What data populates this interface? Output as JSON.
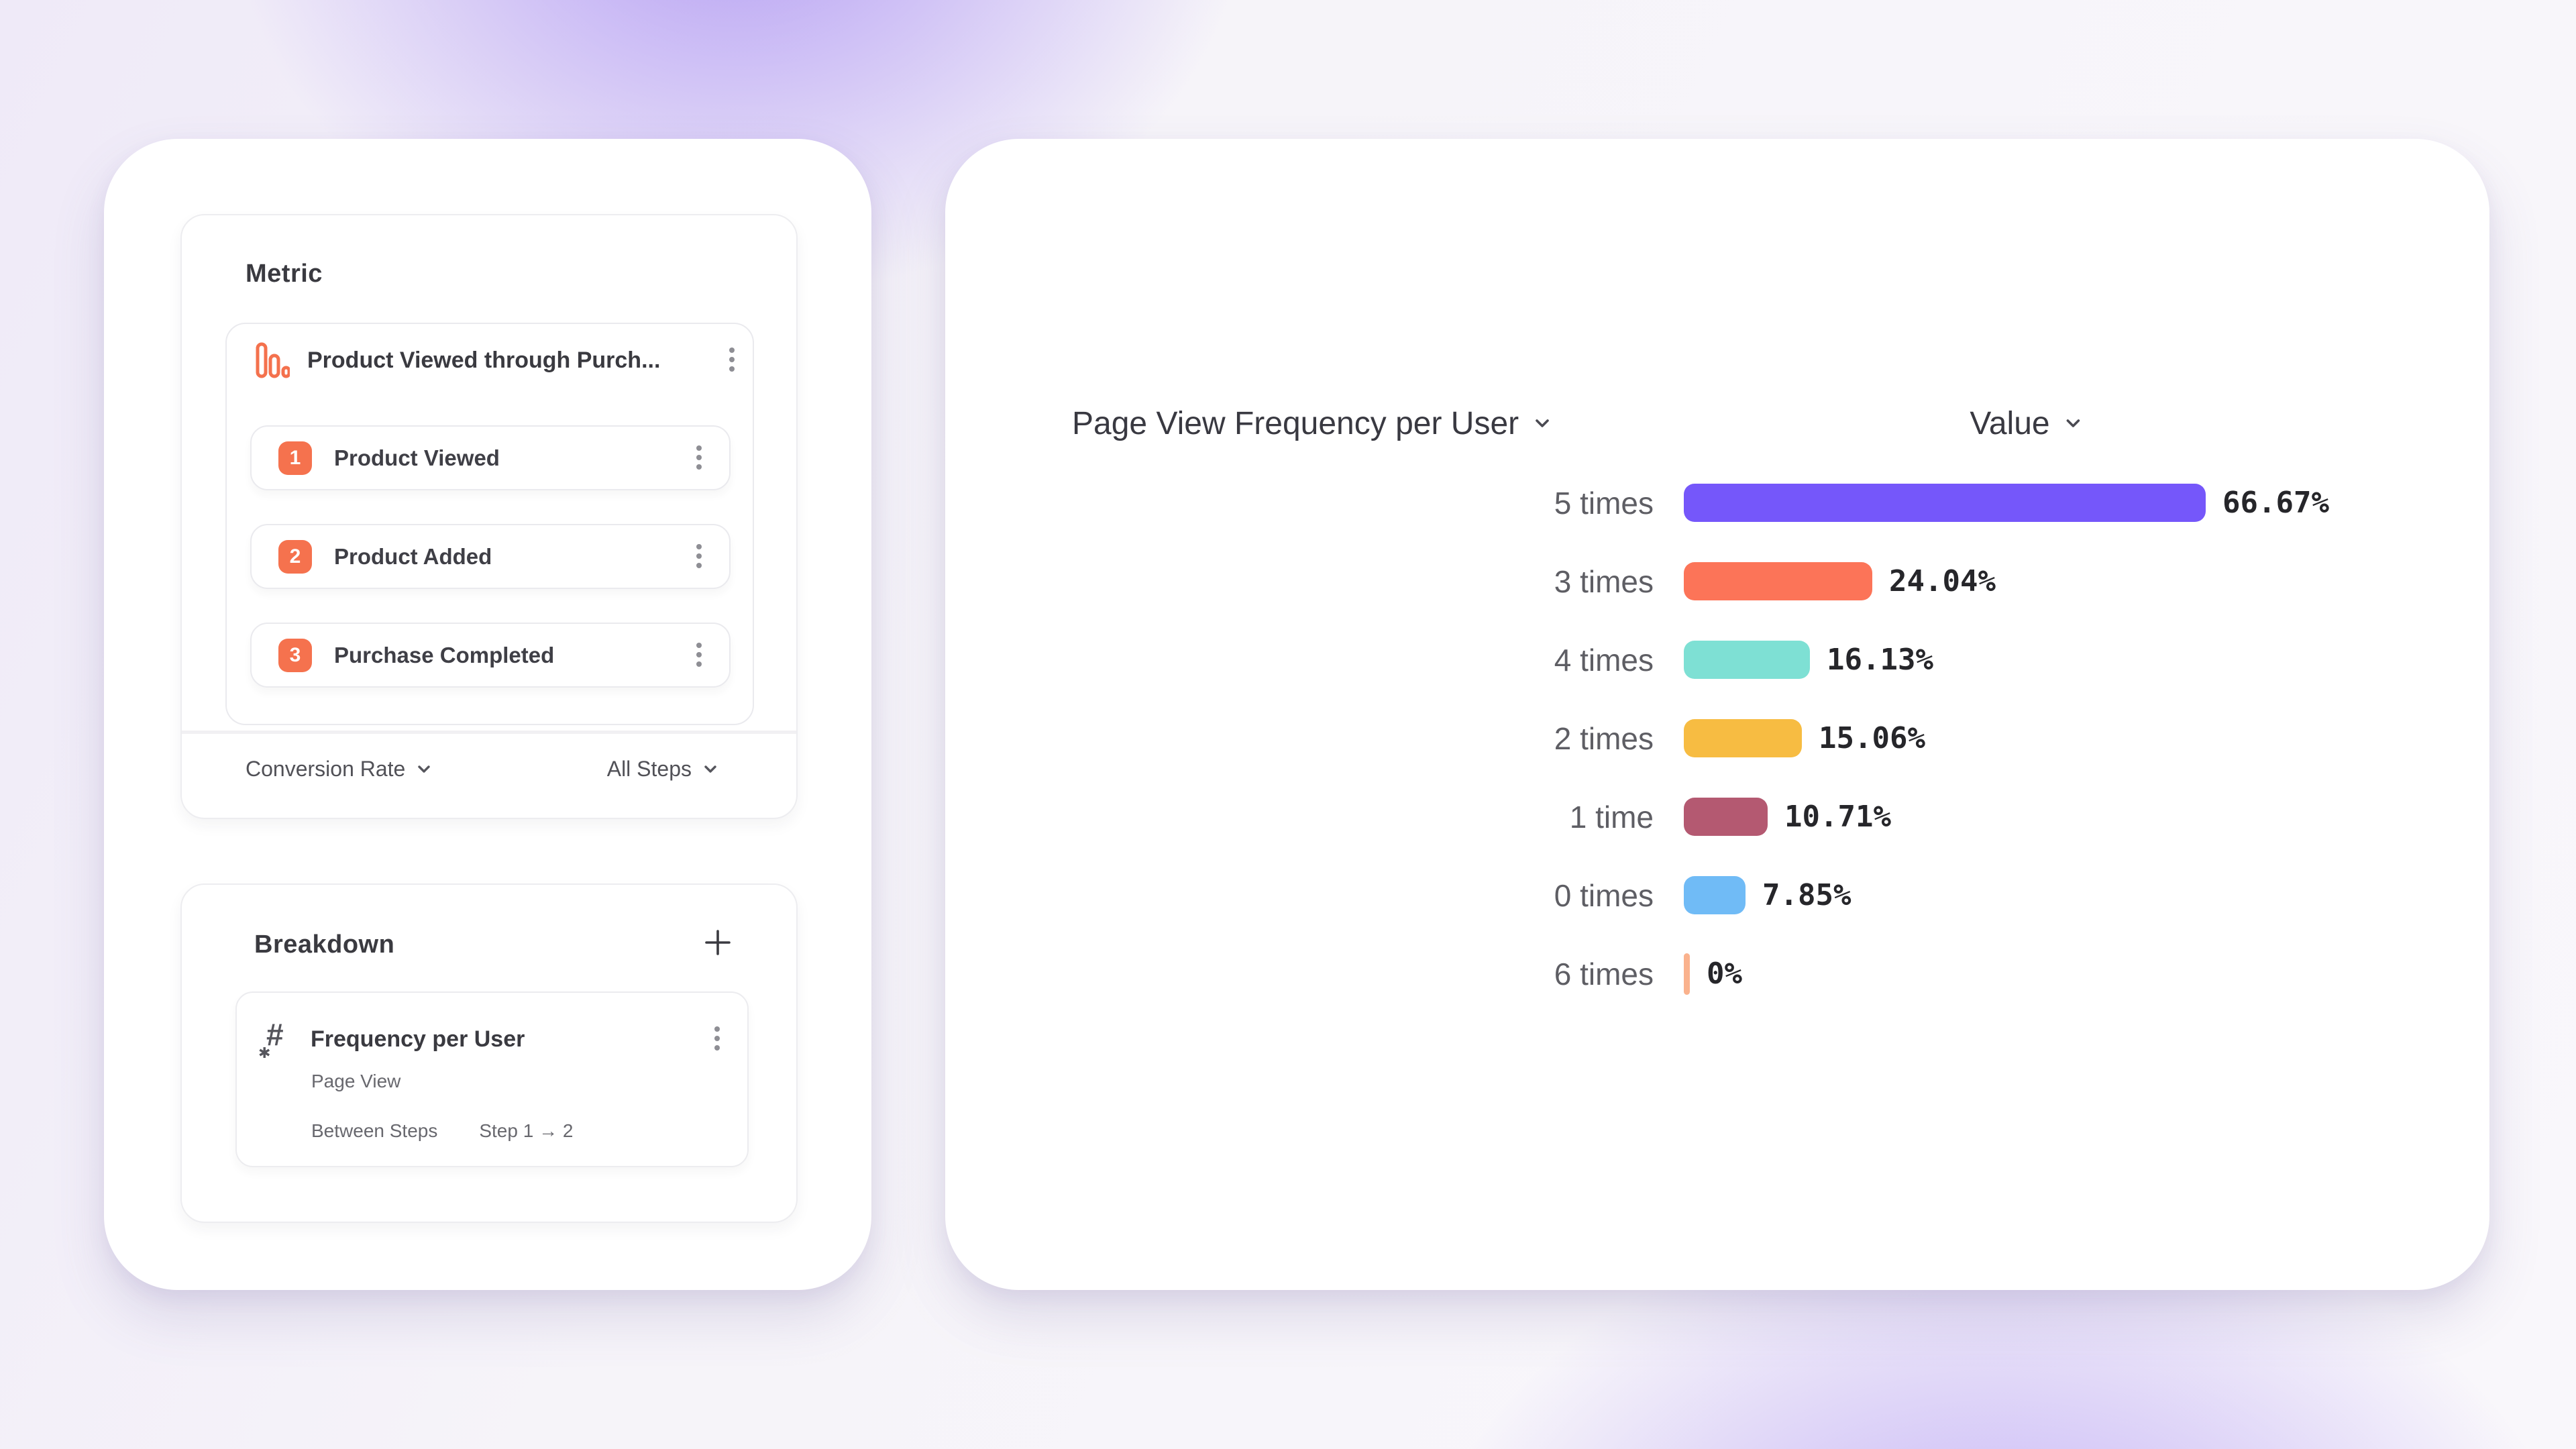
{
  "left_panel": {
    "metric_card": {
      "title": "Metric",
      "funnel": {
        "icon": "funnel-bars-icon",
        "icon_color": "#F4714D",
        "title": "Product Viewed through Purch...",
        "steps": [
          {
            "number": "1",
            "label": "Product Viewed"
          },
          {
            "number": "2",
            "label": "Product Added"
          },
          {
            "number": "3",
            "label": "Purchase Completed"
          }
        ],
        "step_badge_color": "#F5724E"
      },
      "footer": {
        "conversion_dropdown": "Conversion Rate",
        "steps_dropdown": "All Steps"
      }
    },
    "breakdown_card": {
      "title": "Breakdown",
      "add_button": "+",
      "item": {
        "icon": "numeric-property-icon",
        "hash_glyph": "#",
        "star_glyph": "✱",
        "title": "Frequency per User",
        "subtitle": "Page View",
        "detail_label": "Between Steps",
        "detail_value": "Step 1 → 2"
      }
    }
  },
  "chart_panel": {
    "series_dropdown": "Page View Frequency per User",
    "value_dropdown": "Value"
  },
  "chart_data": {
    "type": "bar",
    "orientation": "horizontal",
    "title": "Page View Frequency per User",
    "value_axis_label": "Value",
    "xlim": [
      0,
      100
    ],
    "grid": false,
    "legend": "none",
    "categories": [
      "5 times",
      "3 times",
      "4 times",
      "2 times",
      "1 time",
      "0 times",
      "6 times"
    ],
    "values": [
      66.67,
      24.04,
      16.13,
      15.06,
      10.71,
      7.85,
      0
    ],
    "labels": [
      "66.67%",
      "24.04%",
      "16.13%",
      "15.06%",
      "10.71%",
      "7.85%",
      "0%"
    ],
    "colors": [
      "#7557FA",
      "#FC7458",
      "#7EE0D4",
      "#F7BC42",
      "#B45971",
      "#70BBF6",
      "#FAB28D"
    ]
  }
}
